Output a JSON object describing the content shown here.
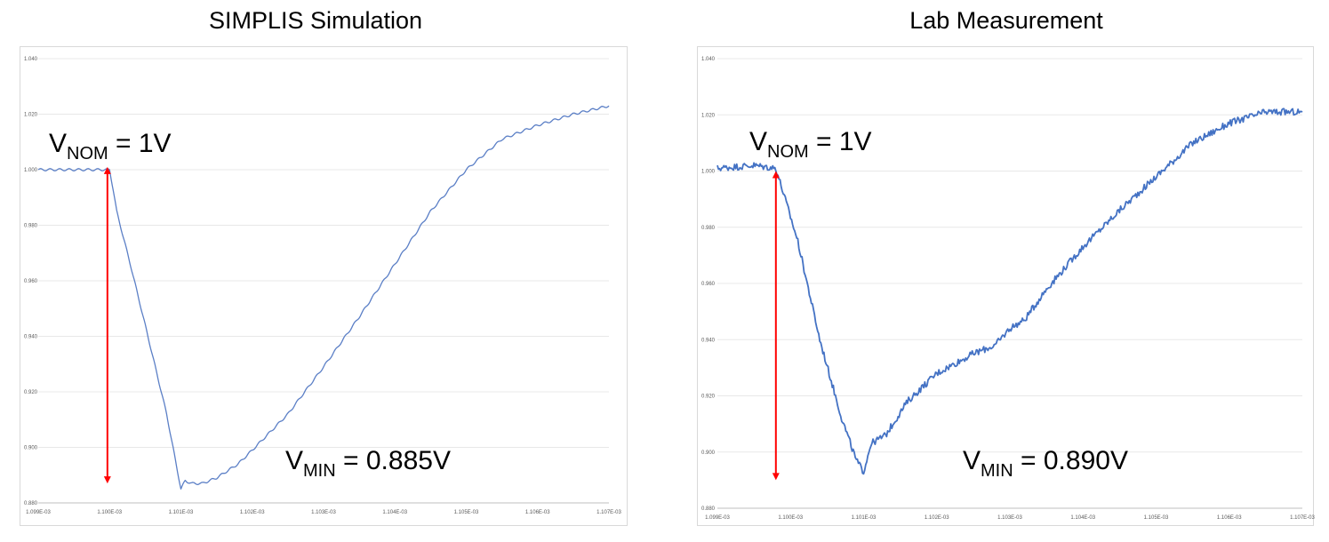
{
  "chart_data": [
    {
      "type": "line",
      "title": "SIMPLIS Simulation",
      "xlabel": "",
      "ylabel": "",
      "xlim": [
        0.001099,
        0.001107
      ],
      "ylim": [
        0.88,
        1.04
      ],
      "grid": "horizontal",
      "line_color": "#5b7fc6",
      "y_ticks": [
        "0.880",
        "0.900",
        "0.920",
        "0.940",
        "0.960",
        "0.980",
        "1.000",
        "1.020",
        "1.040"
      ],
      "x_ticks": [
        "1.099E-03",
        "1.100E-03",
        "1.101E-03",
        "1.102E-03",
        "1.103E-03",
        "1.104E-03",
        "1.105E-03",
        "1.106E-03",
        "1.107E-03"
      ],
      "series": [
        {
          "noise": 0.0004,
          "x": [
            0.001099,
            0.0011,
            0.00110005,
            0.0011001,
            0.0011003,
            0.0011005,
            0.0011008,
            0.001101,
            0.00110106,
            0.00110115,
            0.0011013,
            0.0011015,
            0.0011018,
            0.001102,
            0.0011025,
            0.001103,
            0.0011035,
            0.001104,
            0.0011045,
            0.001105,
            0.0011055,
            0.001106,
            0.0011065,
            0.001107
          ],
          "y": [
            1.0,
            1.0,
            0.993,
            0.985,
            0.965,
            0.944,
            0.912,
            0.885,
            0.888,
            0.887,
            0.887,
            0.889,
            0.894,
            0.899,
            0.912,
            0.929,
            0.947,
            0.966,
            0.985,
            1.0,
            1.011,
            1.016,
            1.02,
            1.023
          ]
        }
      ],
      "annotations": {
        "vnom": {
          "base": "V",
          "sub": "NOM",
          "rest": " = 1V"
        },
        "vmin": {
          "base": "V",
          "sub": "MIN",
          "rest": " = 0.885V"
        },
        "arrow": {
          "x": 0.00109997,
          "y_from": 1.001,
          "y_to": 0.887,
          "color": "#ff0000"
        }
      }
    },
    {
      "type": "line",
      "title": "Lab Measurement",
      "xlabel": "",
      "ylabel": "",
      "xlim": [
        0.001099,
        0.001107
      ],
      "ylim": [
        0.88,
        1.04
      ],
      "grid": "horizontal",
      "line_color": "#4472c4",
      "y_ticks": [
        "0.880",
        "0.900",
        "0.920",
        "0.940",
        "0.960",
        "0.980",
        "1.000",
        "1.020",
        "1.040"
      ],
      "x_ticks": [
        "1.099E-03",
        "1.100E-03",
        "1.101E-03",
        "1.102E-03",
        "1.103E-03",
        "1.104E-03",
        "1.105E-03",
        "1.106E-03",
        "1.107E-03"
      ],
      "series": [
        {
          "noise": 0.0012,
          "x": [
            0.001099,
            0.0010995,
            0.0010998,
            0.0011001,
            0.0011004,
            0.0011007,
            0.0011009,
            0.001101,
            0.0011011,
            0.0011013,
            0.0011016,
            0.001102,
            0.0011025,
            0.0011028,
            0.001103,
            0.0011032,
            0.0011035,
            0.001104,
            0.0011045,
            0.001105,
            0.0011055,
            0.001106,
            0.0011065,
            0.001107
          ],
          "y": [
            1.001,
            1.002,
            1.001,
            0.975,
            0.94,
            0.912,
            0.897,
            0.893,
            0.903,
            0.906,
            0.918,
            0.928,
            0.935,
            0.938,
            0.944,
            0.947,
            0.958,
            0.973,
            0.986,
            0.998,
            1.01,
            1.017,
            1.021,
            1.021
          ]
        }
      ],
      "annotations": {
        "vnom": {
          "base": "V",
          "sub": "NOM",
          "rest": " = 1V"
        },
        "vmin": {
          "base": "V",
          "sub": "MIN",
          "rest": " = 0.890V"
        },
        "arrow": {
          "x": 0.0010998,
          "y_from": 1.0,
          "y_to": 0.89,
          "color": "#ff0000"
        }
      }
    }
  ]
}
